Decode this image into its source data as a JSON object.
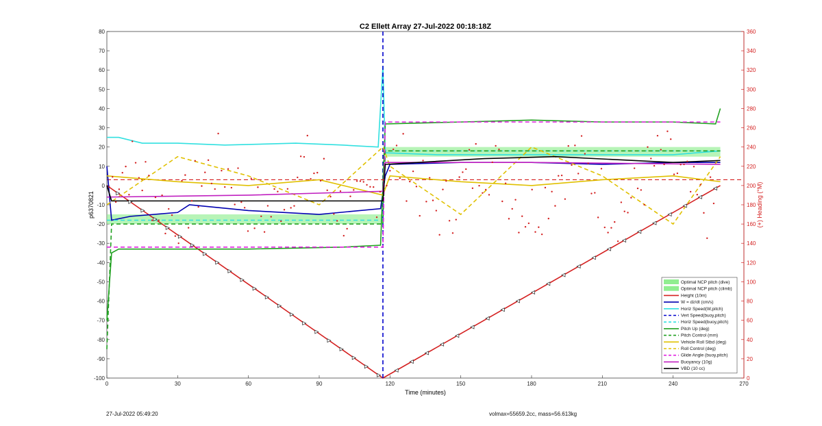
{
  "chart_data": {
    "type": "line",
    "title": "C2 Ellett Array 27-Jul-2022 00:18:18Z",
    "xlabel": "Time (minutes)",
    "ylabel": "p6370821",
    "ylabel_right": "(+) Heading (°M)",
    "xlim": [
      0,
      270
    ],
    "ylim": [
      -100,
      80
    ],
    "ylim_right": [
      0,
      360
    ],
    "x_ticks": [
      "0",
      "30",
      "60",
      "90",
      "120",
      "150",
      "180",
      "210",
      "240",
      "270"
    ],
    "y_ticks": [
      "-100",
      "-90",
      "-80",
      "-70",
      "-60",
      "-50",
      "-40",
      "-30",
      "-20",
      "-10",
      "0",
      "10",
      "20",
      "30",
      "40",
      "50",
      "60",
      "70",
      "80"
    ],
    "y_ticks_right": [
      "0",
      "20",
      "40",
      "60",
      "80",
      "100",
      "120",
      "140",
      "160",
      "180",
      "200",
      "220",
      "240",
      "260",
      "280",
      "300",
      "320",
      "340",
      "360"
    ],
    "grid": false,
    "legend_position": "bottom-right",
    "series": [
      {
        "name": "Optimal NCP pitch (dive)",
        "color": "#90ee90",
        "style": "band",
        "x": [
          0,
          117
        ],
        "y_lower": [
          -20,
          -20
        ],
        "y_upper": [
          -15,
          -15
        ]
      },
      {
        "name": "Optimal NCP pitch (climb)",
        "color": "#90ee90",
        "style": "band",
        "x": [
          118,
          260
        ],
        "y_lower": [
          15,
          15
        ],
        "y_upper": [
          20,
          20
        ]
      },
      {
        "name": "Height (10m)",
        "color": "#d42020",
        "style": "solid",
        "x": [
          0,
          117,
          260
        ],
        "y": [
          0,
          -100,
          0
        ]
      },
      {
        "name": "W = dz/dt (cm/s)",
        "color": "#0000b0",
        "style": "solid",
        "x": [
          0,
          2,
          10,
          30,
          35,
          60,
          90,
          116,
          118,
          120,
          150,
          180,
          210,
          240,
          260
        ],
        "y": [
          10,
          -18,
          -16,
          -14,
          -10,
          -13,
          -15,
          -12,
          5,
          11,
          12,
          12,
          11,
          12,
          12
        ]
      },
      {
        "name": "Horiz Speed(W,pitch)",
        "color": "#30e0e0",
        "style": "solid",
        "x": [
          0,
          5,
          15,
          30,
          50,
          80,
          100,
          115,
          117,
          118,
          140,
          180,
          210,
          240,
          260
        ],
        "y": [
          25,
          25,
          22,
          22,
          21,
          22,
          21,
          20,
          62,
          17,
          16,
          16,
          16,
          16,
          18
        ]
      },
      {
        "name": "Vert Speed(buoy,pitch)",
        "color": "#0000cc",
        "style": "dashed",
        "x": [
          117,
          117
        ],
        "y": [
          -100,
          80
        ]
      },
      {
        "name": "Horiz Speed(buoy,pitch)",
        "color": "#30e0e0",
        "style": "dashed",
        "x": [
          0,
          117,
          118,
          260
        ],
        "y": [
          -18,
          -18,
          18,
          18
        ]
      },
      {
        "name": "Pitch Up (deg)",
        "color": "#20a020",
        "style": "solid",
        "x": [
          0,
          2,
          5,
          20,
          60,
          100,
          116,
          118,
          150,
          180,
          210,
          240,
          258,
          260
        ],
        "y": [
          -70,
          -35,
          -33,
          -33,
          -33,
          -32,
          -31,
          32,
          33,
          34,
          33,
          33,
          32,
          40
        ]
      },
      {
        "name": "Pitch Control (mm)",
        "color": "#20a020",
        "style": "dashed",
        "x": [
          0,
          2,
          117,
          118,
          260
        ],
        "y": [
          -85,
          -20,
          -20,
          18,
          18
        ]
      },
      {
        "name": "Vehicle Roll Stbd (deg)",
        "color": "#e0c000",
        "style": "solid",
        "x": [
          0,
          30,
          60,
          90,
          117,
          120,
          150,
          180,
          210,
          240,
          260
        ],
        "y": [
          5,
          2,
          0,
          3,
          -5,
          5,
          2,
          0,
          3,
          5,
          2
        ]
      },
      {
        "name": "Roll Control (deg)",
        "color": "#e0c000",
        "style": "dashed",
        "x": [
          0,
          30,
          60,
          90,
          117,
          120,
          150,
          180,
          210,
          240,
          260
        ],
        "y": [
          -10,
          15,
          5,
          -10,
          20,
          10,
          -15,
          20,
          5,
          -20,
          15
        ]
      },
      {
        "name": "Glide Angle (buoy,pitch)",
        "color": "#e020e0",
        "style": "dashed",
        "x": [
          0,
          117,
          118,
          260
        ],
        "y": [
          -32,
          -32,
          33,
          33
        ]
      },
      {
        "name": "Buoyancy (10g)",
        "color": "#c020c0",
        "style": "solid",
        "x": [
          0,
          60,
          117,
          118,
          180,
          260
        ],
        "y": [
          -6,
          -5,
          -3,
          12,
          12,
          11
        ]
      },
      {
        "name": "VBD (10 cc)",
        "color": "#000000",
        "style": "solid",
        "x": [
          0,
          2,
          117,
          118,
          160,
          190,
          240,
          260
        ],
        "y": [
          0,
          -8,
          -8,
          11,
          14,
          15,
          12,
          13
        ]
      }
    ],
    "heading_series": {
      "name": "Heading",
      "color": "#d42020",
      "axis": "right",
      "style": "dots",
      "dashed_reference": 206
    }
  },
  "footer": {
    "left": "27-Jul-2022 05:49:20",
    "right": "volmax=55659.2cc, mass=56.613kg"
  }
}
